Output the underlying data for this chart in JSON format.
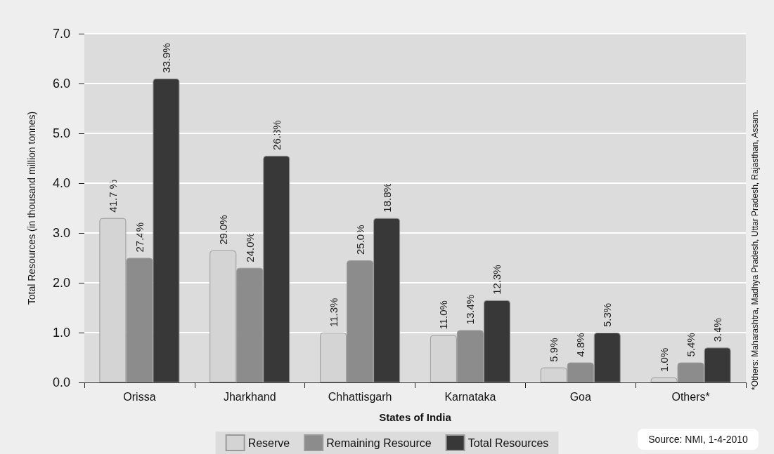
{
  "chart_data": {
    "type": "bar",
    "xlabel": "States of India",
    "ylabel": "Total Resources (in thousand million tonnes)",
    "categories": [
      "Orissa",
      "Jharkhand",
      "Chhattisgarh",
      "Karnataka",
      "Goa",
      "Others*"
    ],
    "series": [
      {
        "name": "Reserve",
        "color": "#d4d4d4",
        "values": [
          3.3,
          2.65,
          1.0,
          0.95,
          0.3,
          0.1
        ]
      },
      {
        "name": "Remaining Resource",
        "color": "#8c8c8c",
        "values": [
          2.5,
          2.3,
          2.45,
          1.05,
          0.4,
          0.4
        ]
      },
      {
        "name": "Total Resources",
        "color": "#383838",
        "values": [
          6.1,
          4.55,
          3.3,
          1.65,
          1.0,
          0.7
        ]
      }
    ],
    "ylim": [
      0,
      7
    ],
    "yticks": [
      {
        "value": 0,
        "label": "0.0"
      },
      {
        "value": 1,
        "label": "1.0"
      },
      {
        "value": 2,
        "label": "2.0"
      },
      {
        "value": 3,
        "label": "3.0"
      },
      {
        "value": 4,
        "label": "4.0"
      },
      {
        "value": 5,
        "label": "5.0"
      },
      {
        "value": 6,
        "label": "6.0"
      },
      {
        "value": 7,
        "label": "7.0"
      }
    ],
    "grid": "y",
    "legend": "bottom",
    "annotations": [
      "*Others: Maharashtra, Madhya Pradesh, Uttar Pradesh, Rajasthan, Assam.",
      "Source: NMI, 1-4-2010",
      "41.7 %",
      "27.4%",
      "33.9%",
      "29.0%",
      "24.0%",
      "26.3%",
      "11.3%",
      "25.0%",
      "18.8%",
      "11.0%",
      "13.4%",
      "12.3%",
      "5.9%",
      "4.8%",
      "5.3%",
      "1.0%",
      "5.4%",
      "3.4%"
    ]
  }
}
